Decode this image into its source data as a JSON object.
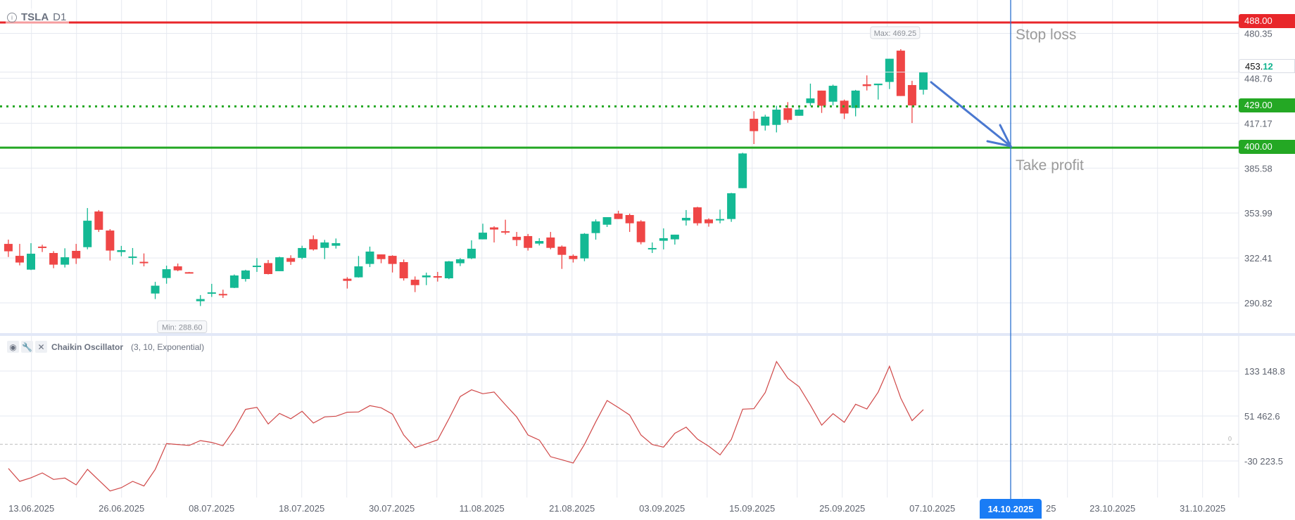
{
  "header": {
    "symbol": "TSLA",
    "timeframe": "D1"
  },
  "indicator": {
    "name": "Chaikin Oscillator",
    "params": "(3, 10, Exponential)"
  },
  "levels": {
    "stop_loss": {
      "price": 488.0,
      "label": "488.00",
      "color": "#e8262a",
      "note": "Stop loss"
    },
    "entry": {
      "price": 429.0,
      "label": "429.00",
      "color": "#24a824"
    },
    "take_profit": {
      "price": 400.0,
      "label": "400.00",
      "color": "#24a824",
      "note": "Take profit"
    }
  },
  "current_price": {
    "int": "453.",
    "dec": "12"
  },
  "cursor_date": "14.10.2025",
  "hidden_date_fragment": "25",
  "colors": {
    "up": "#14b994",
    "down": "#ef4646",
    "osc": "#d04848",
    "cursor": "#2a6fd0",
    "arrow": "#4a78d0"
  },
  "chart_data": {
    "type": "candlestick",
    "title": "TSLA D1",
    "price_ticks": [
      "480.35",
      "448.76",
      "417.17",
      "385.58",
      "353.99",
      "322.41",
      "290.82"
    ],
    "min_label": "Min: 288.60",
    "max_label": "Max: 469.25",
    "min_index": 17,
    "max_index": 79,
    "date_ticks": [
      "13.06.2025",
      "26.06.2025",
      "08.07.2025",
      "18.07.2025",
      "30.07.2025",
      "11.08.2025",
      "21.08.2025",
      "03.09.2025",
      "15.09.2025",
      "25.09.2025",
      "07.10.2025",
      "",
      "23.10.2025",
      "31.10.2025"
    ],
    "candles_ohlc": [
      [
        332.3,
        335.3,
        323.1,
        327.1
      ],
      [
        323.9,
        332.3,
        317.2,
        319.2
      ],
      [
        314.2,
        332.8,
        313.9,
        325.4
      ],
      [
        330.4,
        331.7,
        326.6,
        330.0
      ],
      [
        325.9,
        327.2,
        315.2,
        317.7
      ],
      [
        317.7,
        329.2,
        315.7,
        322.9
      ],
      [
        327.4,
        332.3,
        318.2,
        322.1
      ],
      [
        330.0,
        357.5,
        328.5,
        348.6
      ],
      [
        355.1,
        356.1,
        340.7,
        342.2
      ],
      [
        341.7,
        342.7,
        320.6,
        327.6
      ],
      [
        326.6,
        330.9,
        323.6,
        327.9
      ],
      [
        322.6,
        329.4,
        317.7,
        323.4
      ],
      [
        319.7,
        325.6,
        316.5,
        319.2
      ],
      [
        297.4,
        305.6,
        293.5,
        302.9
      ],
      [
        308.3,
        317.0,
        304.3,
        314.5
      ],
      [
        316.5,
        318.5,
        313.1,
        313.7
      ],
      [
        312.4,
        312.6,
        312.0,
        312.2
      ],
      [
        292.0,
        296.3,
        288.6,
        293.5
      ],
      [
        297.6,
        304.2,
        295.0,
        298.2
      ],
      [
        297.1,
        300.1,
        294.3,
        296.6
      ],
      [
        301.4,
        310.8,
        301.2,
        310.1
      ],
      [
        307.6,
        314.1,
        305.8,
        313.6
      ],
      [
        316.7,
        322.3,
        312.6,
        317.0
      ],
      [
        318.8,
        321.0,
        310.8,
        311.1
      ],
      [
        313.1,
        323.3,
        313.1,
        322.9
      ],
      [
        322.3,
        324.3,
        317.5,
        319.7
      ],
      [
        322.5,
        331.0,
        321.6,
        329.4
      ],
      [
        335.6,
        338.3,
        327.6,
        328.4
      ],
      [
        329.5,
        335.1,
        321.6,
        333.3
      ],
      [
        331.0,
        336.1,
        329.0,
        332.8
      ],
      [
        307.8,
        308.9,
        300.9,
        306.3
      ],
      [
        308.8,
        323.8,
        308.6,
        316.5
      ],
      [
        318.2,
        330.4,
        316.0,
        326.9
      ],
      [
        324.9,
        324.9,
        318.7,
        321.6
      ],
      [
        323.9,
        324.3,
        312.2,
        318.2
      ],
      [
        319.5,
        321.3,
        306.5,
        308.1
      ],
      [
        307.1,
        309.4,
        298.4,
        303.3
      ],
      [
        308.8,
        312.1,
        303.3,
        310.1
      ],
      [
        309.6,
        312.6,
        305.8,
        309.3
      ],
      [
        308.1,
        320.3,
        307.5,
        320.0
      ],
      [
        318.7,
        322.3,
        316.7,
        321.5
      ],
      [
        322.1,
        334.8,
        321.6,
        328.9
      ],
      [
        335.5,
        346.5,
        335.5,
        340.2
      ],
      [
        343.9,
        344.7,
        333.3,
        342.4
      ],
      [
        341.2,
        349.3,
        338.9,
        340.9
      ],
      [
        337.3,
        340.7,
        330.8,
        335.0
      ],
      [
        337.8,
        339.3,
        327.6,
        329.5
      ],
      [
        332.5,
        336.3,
        331.2,
        334.3
      ],
      [
        336.8,
        340.7,
        328.5,
        329.5
      ],
      [
        330.4,
        331.2,
        314.7,
        324.6
      ],
      [
        323.9,
        324.9,
        319.2,
        321.6
      ],
      [
        322.1,
        339.9,
        320.1,
        339.4
      ],
      [
        339.9,
        349.5,
        335.3,
        348.1
      ],
      [
        345.8,
        351.1,
        344.2,
        351.1
      ],
      [
        353.6,
        355.6,
        349.8,
        349.8
      ],
      [
        352.6,
        353.6,
        340.7,
        346.8
      ],
      [
        348.1,
        349.0,
        332.0,
        333.5
      ],
      [
        328.5,
        333.3,
        325.9,
        329.4
      ],
      [
        334.5,
        343.2,
        328.4,
        336.3
      ],
      [
        335.5,
        338.8,
        331.8,
        338.8
      ],
      [
        348.8,
        356.1,
        345.2,
        350.6
      ],
      [
        358.0,
        358.4,
        345.2,
        346.8
      ],
      [
        349.5,
        350.3,
        344.4,
        346.8
      ],
      [
        349.3,
        356.4,
        346.8,
        349.8
      ],
      [
        349.8,
        368.2,
        347.8,
        367.9
      ],
      [
        371.5,
        396.4,
        371.5,
        395.9
      ],
      [
        420.3,
        425.6,
        402.5,
        411.6
      ],
      [
        415.5,
        423.1,
        412.0,
        421.8
      ],
      [
        416.0,
        429.4,
        410.7,
        426.7
      ],
      [
        427.7,
        432.0,
        417.5,
        419.5
      ],
      [
        422.4,
        429.4,
        422.4,
        426.7
      ],
      [
        431.3,
        445.0,
        429.4,
        434.6
      ],
      [
        440.1,
        440.1,
        424.4,
        429.4
      ],
      [
        432.3,
        444.3,
        429.7,
        443.5
      ],
      [
        433.0,
        433.8,
        420.1,
        424.0
      ],
      [
        427.9,
        440.6,
        422.0,
        440.1
      ],
      [
        444.5,
        450.8,
        440.2,
        443.3
      ],
      [
        443.9,
        445.0,
        433.8,
        445.0
      ],
      [
        446.2,
        462.5,
        441.2,
        462.5
      ],
      [
        468.2,
        469.25,
        436.3,
        436.3
      ],
      [
        444.0,
        447.0,
        417.3,
        429.7
      ],
      [
        440.7,
        453.4,
        437.3,
        453.12
      ]
    ],
    "oscillator": {
      "ticks": [
        "133 148.8",
        "51 462.6",
        "-30 223.5"
      ],
      "zero_label": "0",
      "values": [
        -43800,
        -67200,
        -60800,
        -51900,
        -63800,
        -61300,
        -73600,
        -45500,
        -65100,
        -84700,
        -78700,
        -67200,
        -75700,
        -45500,
        1300,
        -400,
        -2100,
        6800,
        3400,
        -2600,
        27200,
        63400,
        67200,
        37000,
        56200,
        46400,
        60000,
        38700,
        49800,
        51000,
        58300,
        58700,
        70200,
        66400,
        54900,
        17000,
        -6000,
        900,
        8100,
        46400,
        86800,
        99100,
        91900,
        94900,
        71900,
        49800,
        17000,
        7700,
        -22500,
        -28100,
        -34000,
        0,
        40800,
        79500,
        66800,
        53200,
        17000,
        -400,
        -5100,
        20000,
        31100,
        9400,
        -3400,
        -19100,
        8900,
        63800,
        64700,
        94000,
        150200,
        120000,
        104600,
        71000,
        34900,
        55700,
        40000,
        72700,
        64200,
        94900,
        141700,
        83800,
        43000,
        63000
      ]
    }
  }
}
